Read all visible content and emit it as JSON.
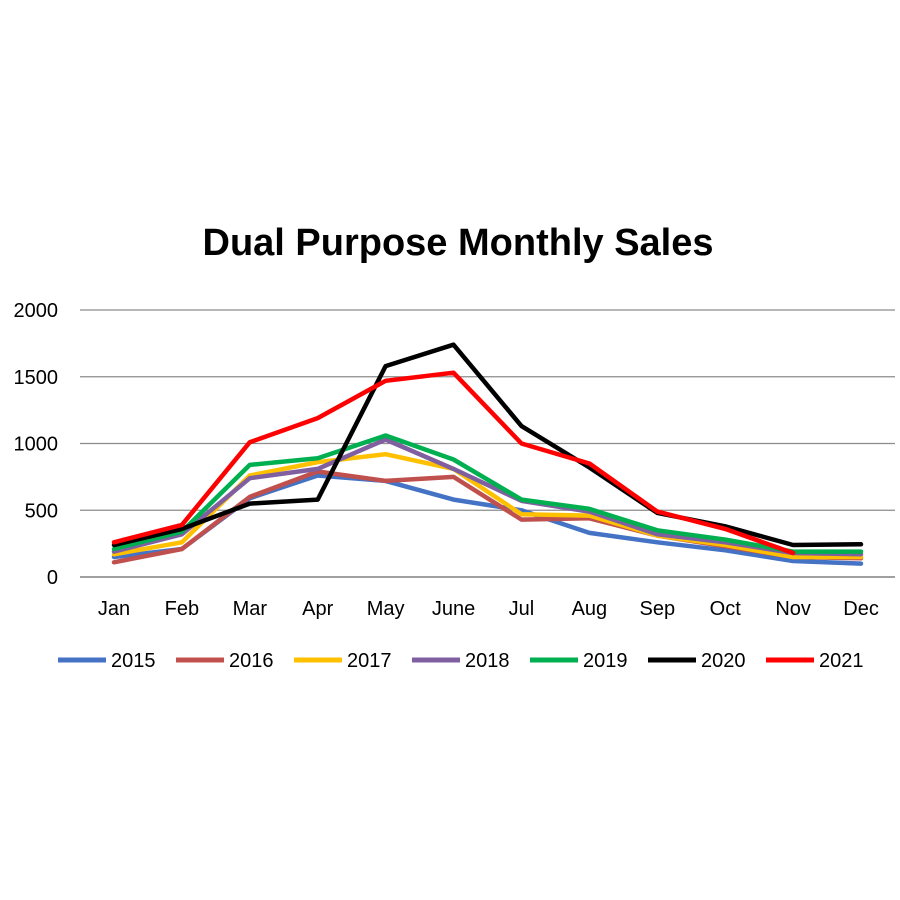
{
  "chart_data": {
    "type": "line",
    "title": "Dual Purpose Monthly Sales",
    "xlabel": "",
    "ylabel": "",
    "ylim": [
      0,
      2000
    ],
    "yticks": [
      0,
      500,
      1000,
      1500,
      2000
    ],
    "grid": true,
    "legend_position": "bottom",
    "categories": [
      "Jan",
      "Feb",
      "Mar",
      "Apr",
      "May",
      "June",
      "Jul",
      "Aug",
      "Sep",
      "Oct",
      "Nov",
      "Dec"
    ],
    "series": [
      {
        "name": "2015",
        "color": "#4472C4",
        "values": [
          150,
          210,
          590,
          760,
          720,
          580,
          500,
          330,
          260,
          200,
          120,
          100
        ]
      },
      {
        "name": "2016",
        "color": "#C0504D",
        "values": [
          110,
          210,
          600,
          790,
          720,
          750,
          430,
          440,
          310,
          230,
          150,
          140
        ]
      },
      {
        "name": "2017",
        "color": "#FFC000",
        "values": [
          170,
          260,
          760,
          860,
          920,
          810,
          470,
          460,
          310,
          240,
          150,
          150
        ]
      },
      {
        "name": "2018",
        "color": "#7F5FA0",
        "values": [
          190,
          320,
          740,
          810,
          1030,
          810,
          570,
          490,
          320,
          260,
          180,
          170
        ]
      },
      {
        "name": "2019",
        "color": "#00B050",
        "values": [
          210,
          340,
          840,
          890,
          1060,
          880,
          580,
          510,
          350,
          280,
          190,
          190
        ]
      },
      {
        "name": "2020",
        "color": "#000000",
        "values": [
          240,
          360,
          550,
          580,
          1580,
          1740,
          1130,
          820,
          480,
          380,
          240,
          245
        ]
      },
      {
        "name": "2021",
        "color": "#FF0000",
        "values": [
          260,
          390,
          1010,
          1190,
          1470,
          1530,
          1000,
          850,
          490,
          360,
          180,
          null
        ]
      }
    ]
  }
}
